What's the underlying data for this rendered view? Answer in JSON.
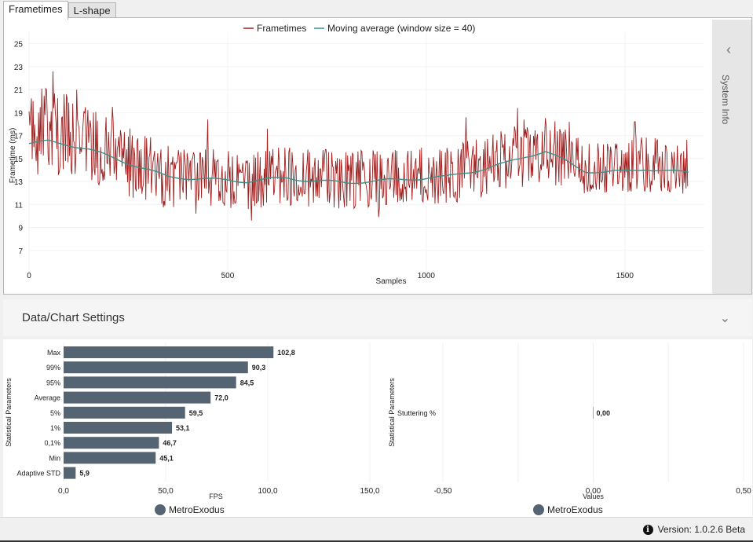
{
  "tabs": [
    {
      "label": "Frametimes",
      "active": true
    },
    {
      "label": "L-shape",
      "active": false
    }
  ],
  "side_panel": {
    "label": "System Info"
  },
  "settings": {
    "title": "Data/Chart Settings"
  },
  "status": {
    "version": "Version:  1.0.2.6 Beta"
  },
  "colors": {
    "frametime": "#9e1e1e",
    "average": "#3d8f86",
    "bar": "#546472"
  },
  "chart_data": [
    {
      "type": "line",
      "title": "",
      "legend": [
        "Frametimes",
        "Moving average (window size = 40)"
      ],
      "xlabel": "Samples",
      "ylabel": "Frametime (ms)",
      "xlim": [
        0,
        1700
      ],
      "ylim": [
        5,
        26
      ],
      "xticks": [
        "0",
        "500",
        "1000",
        "1500"
      ],
      "yticks": [
        "7",
        "9",
        "11",
        "13",
        "15",
        "17",
        "19",
        "21",
        "23",
        "25"
      ],
      "sample_count": 1660,
      "moving_average": {
        "x": [
          0,
          50,
          100,
          150,
          200,
          250,
          300,
          350,
          400,
          450,
          500,
          550,
          600,
          650,
          700,
          750,
          800,
          850,
          900,
          950,
          1000,
          1050,
          1100,
          1150,
          1200,
          1250,
          1300,
          1350,
          1400,
          1450,
          1500,
          1550,
          1600,
          1660
        ],
        "y": [
          16.3,
          16.5,
          16.2,
          15.8,
          15.2,
          14.6,
          14.0,
          13.4,
          13.3,
          13.2,
          13.1,
          13.0,
          13.2,
          13.3,
          13.1,
          13.0,
          12.9,
          13.0,
          13.1,
          13.2,
          13.3,
          13.4,
          13.8,
          14.1,
          14.6,
          15.2,
          15.6,
          14.8,
          13.9,
          13.8,
          13.9,
          14.1,
          13.9,
          13.8
        ]
      },
      "frametime_envelope": {
        "x": [
          0,
          50,
          100,
          150,
          200,
          250,
          300,
          350,
          400,
          450,
          500,
          550,
          600,
          650,
          700,
          750,
          800,
          850,
          900,
          950,
          1000,
          1050,
          1100,
          1150,
          1200,
          1250,
          1300,
          1350,
          1400,
          1450,
          1500,
          1550,
          1600,
          1660
        ],
        "low": [
          13.5,
          13.6,
          13.4,
          13.0,
          12.4,
          11.6,
          11.2,
          10.6,
          10.8,
          10.6,
          10.7,
          10.5,
          10.8,
          10.9,
          10.7,
          10.6,
          10.5,
          10.6,
          10.6,
          10.8,
          10.9,
          11.0,
          11.3,
          11.6,
          12.0,
          12.6,
          12.9,
          12.4,
          11.9,
          12.0,
          12.0,
          12.1,
          12.0,
          11.9
        ],
        "high": [
          20.5,
          21.5,
          20.5,
          19.5,
          18.5,
          17.8,
          17.0,
          16.2,
          16.0,
          15.8,
          15.8,
          15.6,
          16.0,
          16.1,
          15.9,
          15.8,
          15.7,
          15.8,
          15.9,
          16.0,
          16.1,
          16.3,
          16.8,
          17.0,
          17.6,
          18.5,
          18.8,
          18.0,
          16.9,
          16.7,
          16.8,
          17.0,
          16.8,
          16.7
        ],
        "peaks": [
          {
            "x": 60,
            "y": 22.6
          },
          {
            "x": 120,
            "y": 21.0
          },
          {
            "x": 210,
            "y": 19.5
          },
          {
            "x": 450,
            "y": 18.4
          },
          {
            "x": 600,
            "y": 17.6
          },
          {
            "x": 1100,
            "y": 18.6
          },
          {
            "x": 1230,
            "y": 19.4
          },
          {
            "x": 1360,
            "y": 18.2
          },
          {
            "x": 1525,
            "y": 18.2
          }
        ],
        "troughs": [
          {
            "x": 560,
            "y": 9.6
          },
          {
            "x": 880,
            "y": 9.9
          },
          {
            "x": 420,
            "y": 10.2
          }
        ]
      }
    },
    {
      "type": "bar",
      "orientation": "horizontal",
      "series_name": "MetroExodus",
      "ylabel": "Statistical Parameters",
      "xlabel": "FPS",
      "xlim": [
        0,
        150
      ],
      "xticks": [
        "0,0",
        "50,0",
        "100,0",
        "150,0"
      ],
      "categories": [
        "Max",
        "99%",
        "95%",
        "Average",
        "5%",
        "1%",
        "0,1%",
        "Min",
        "Adaptive STD"
      ],
      "values": [
        102.8,
        90.3,
        84.5,
        72.0,
        59.5,
        53.1,
        46.7,
        45.1,
        5.9
      ],
      "labels": [
        "102,8",
        "90,3",
        "84,5",
        "72,0",
        "59,5",
        "53,1",
        "46,7",
        "45,1",
        "5,9"
      ]
    },
    {
      "type": "bar",
      "orientation": "horizontal",
      "series_name": "MetroExodus",
      "ylabel": "Statistical Parameters",
      "xlabel": "Values",
      "xlim": [
        -0.5,
        0.5
      ],
      "xticks": [
        "-0,50",
        "0,00",
        "0,50"
      ],
      "categories": [
        "Stuttering %"
      ],
      "values": [
        0.0
      ],
      "labels": [
        "0,00"
      ]
    }
  ]
}
